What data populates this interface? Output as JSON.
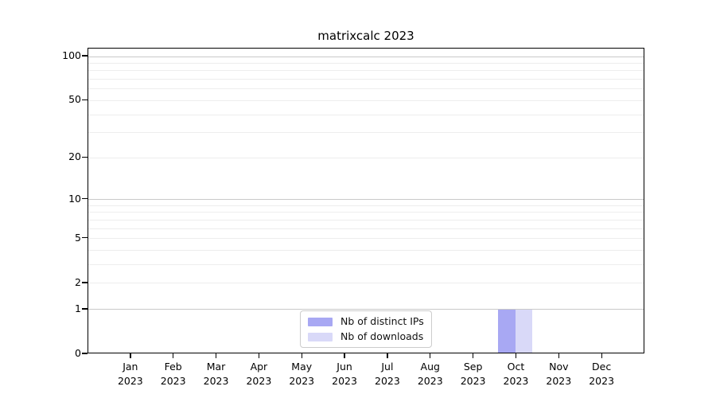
{
  "chart_data": {
    "type": "bar",
    "title": "matrixcalc 2023",
    "categories": [
      "Jan 2023",
      "Feb 2023",
      "Mar 2023",
      "Apr 2023",
      "May 2023",
      "Jun 2023",
      "Jul 2023",
      "Aug 2023",
      "Sep 2023",
      "Oct 2023",
      "Nov 2023",
      "Dec 2023"
    ],
    "series": [
      {
        "name": "Nb of distinct IPs",
        "color": "#a8a8f3",
        "values": [
          0,
          0,
          0,
          0,
          0,
          0,
          0,
          0,
          0,
          1,
          0,
          0
        ]
      },
      {
        "name": "Nb of downloads",
        "color": "#d9d9f8",
        "values": [
          0,
          0,
          0,
          0,
          0,
          0,
          0,
          0,
          0,
          1,
          0,
          0
        ]
      }
    ],
    "y_axis": {
      "scale": "log10(1+x)",
      "tick_values": [
        0,
        1,
        2,
        5,
        10,
        20,
        50,
        100
      ],
      "tick_labels": [
        "0",
        "1",
        "2",
        "5",
        "10",
        "20",
        "50",
        "100"
      ],
      "major_gridlines": [
        1,
        10,
        100
      ],
      "minor_gridlines": [
        2,
        3,
        4,
        5,
        6,
        7,
        8,
        9,
        20,
        30,
        40,
        50,
        60,
        70,
        80,
        90
      ],
      "range": [
        0,
        113
      ]
    },
    "legend": {
      "location": "lower center",
      "entries": [
        {
          "label": "Nb of distinct IPs",
          "color": "#a8a8f3"
        },
        {
          "label": "Nb of downloads",
          "color": "#d9d9f8"
        }
      ]
    },
    "grid": true,
    "xlabel": "",
    "ylabel": ""
  },
  "colors": {
    "background": "#ffffff",
    "axis": "#000000",
    "major_grid": "#c9c9c9",
    "minor_grid": "#ededed",
    "text": "#000000"
  }
}
